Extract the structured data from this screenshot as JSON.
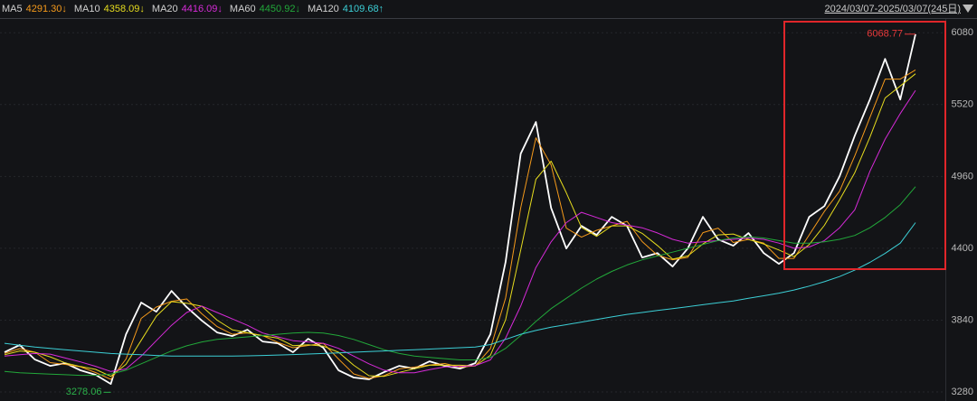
{
  "chart_data": {
    "type": "line",
    "date_range": "2024/03/07-2025/03/07(245日)",
    "ylim": [
      3210,
      6180
    ],
    "yticks": [
      3280,
      3840,
      4400,
      4960,
      5520,
      6080
    ],
    "grid": true,
    "annotations": [
      {
        "text": "6068.77",
        "value": 6068.77,
        "index": 60,
        "color": "#e8393a"
      },
      {
        "text": "3278.06",
        "value": 3278.06,
        "index": 7,
        "color": "#2bb14a"
      }
    ],
    "series": [
      {
        "color": "#ffffff",
        "values": [
          3590,
          3646,
          3533,
          3484,
          3505,
          3449,
          3414,
          3343,
          3730,
          3977,
          3906,
          4068,
          3941,
          3836,
          3744,
          3716,
          3765,
          3674,
          3660,
          3590,
          3695,
          3625,
          3449,
          3393,
          3379,
          3435,
          3484,
          3463,
          3519,
          3484,
          3463,
          3505,
          3730,
          4293,
          5137,
          5384,
          4715,
          4399,
          4575,
          4504,
          4645,
          4575,
          4328,
          4363,
          4258,
          4399,
          4645,
          4469,
          4420,
          4518,
          4363,
          4279,
          4363,
          4645,
          4729,
          4961,
          5278,
          5559,
          5876,
          5559,
          6068.77
        ]
      },
      {
        "name": "MA5",
        "legend_label": "4291.30↓",
        "color": "#f59a1b",
        "values": [
          3580,
          3618,
          3590,
          3509,
          3495,
          3477,
          3432,
          3379,
          3537,
          3854,
          3942,
          3987,
          4005,
          3889,
          3790,
          3730,
          3741,
          3720,
          3667,
          3625,
          3643,
          3660,
          3537,
          3421,
          3386,
          3407,
          3460,
          3474,
          3491,
          3502,
          3474,
          3484,
          3618,
          4012,
          4715,
          5261,
          5050,
          4557,
          4487,
          4540,
          4575,
          4610,
          4452,
          4346,
          4311,
          4329,
          4522,
          4557,
          4445,
          4469,
          4441,
          4321,
          4321,
          4504,
          4687,
          4845,
          5120,
          5419,
          5718,
          5718,
          5790
        ]
      },
      {
        "name": "MA10",
        "legend_label": "4358.09↓",
        "color": "#e6dc1e",
        "values": [
          3570,
          3600,
          3590,
          3554,
          3507,
          3479,
          3456,
          3402,
          3496,
          3683,
          3871,
          3984,
          3972,
          3948,
          3840,
          3765,
          3742,
          3718,
          3700,
          3641,
          3648,
          3637,
          3590,
          3489,
          3407,
          3402,
          3433,
          3461,
          3489,
          3489,
          3489,
          3484,
          3566,
          3843,
          4387,
          4938,
          5079,
          4833,
          4563,
          4493,
          4575,
          4575,
          4516,
          4422,
          4316,
          4340,
          4434,
          4504,
          4511,
          4469,
          4434,
          4387,
          4335,
          4429,
          4579,
          4778,
          4989,
          5266,
          5571,
          5665,
          5760
        ]
      },
      {
        "name": "MA20",
        "legend_label": "4416.09↓",
        "color": "#d62ad8",
        "values": [
          3560,
          3570,
          3580,
          3575,
          3545,
          3515,
          3480,
          3440,
          3460,
          3560,
          3680,
          3800,
          3900,
          3950,
          3900,
          3850,
          3800,
          3740,
          3710,
          3680,
          3670,
          3660,
          3620,
          3560,
          3500,
          3450,
          3430,
          3430,
          3455,
          3475,
          3480,
          3485,
          3530,
          3700,
          3950,
          4250,
          4450,
          4600,
          4680,
          4640,
          4600,
          4580,
          4560,
          4520,
          4470,
          4440,
          4450,
          4460,
          4470,
          4480,
          4470,
          4440,
          4400,
          4410,
          4460,
          4560,
          4700,
          5000,
          5250,
          5450,
          5630
        ]
      },
      {
        "name": "MA60",
        "legend_label": "4450.92↓",
        "color": "#22a83a",
        "values": [
          3440,
          3430,
          3425,
          3420,
          3415,
          3410,
          3410,
          3420,
          3450,
          3500,
          3550,
          3600,
          3640,
          3670,
          3690,
          3700,
          3710,
          3720,
          3730,
          3740,
          3745,
          3740,
          3720,
          3690,
          3650,
          3610,
          3580,
          3560,
          3550,
          3540,
          3530,
          3530,
          3550,
          3620,
          3720,
          3830,
          3930,
          4010,
          4090,
          4160,
          4220,
          4270,
          4310,
          4340,
          4370,
          4400,
          4430,
          4460,
          4480,
          4490,
          4480,
          4460,
          4440,
          4440,
          4450,
          4470,
          4500,
          4560,
          4640,
          4740,
          4880
        ]
      },
      {
        "name": "MA120",
        "legend_label": "4109.68↑",
        "color": "#3ccfd6",
        "values": [
          3660,
          3645,
          3630,
          3620,
          3610,
          3600,
          3590,
          3580,
          3575,
          3570,
          3565,
          3560,
          3560,
          3560,
          3560,
          3560,
          3562,
          3565,
          3568,
          3572,
          3576,
          3580,
          3585,
          3590,
          3595,
          3600,
          3605,
          3610,
          3615,
          3620,
          3625,
          3630,
          3650,
          3690,
          3730,
          3760,
          3785,
          3805,
          3825,
          3845,
          3865,
          3885,
          3900,
          3915,
          3930,
          3945,
          3960,
          3975,
          3990,
          4010,
          4030,
          4050,
          4075,
          4105,
          4140,
          4180,
          4230,
          4290,
          4360,
          4440,
          4600
        ]
      }
    ]
  }
}
